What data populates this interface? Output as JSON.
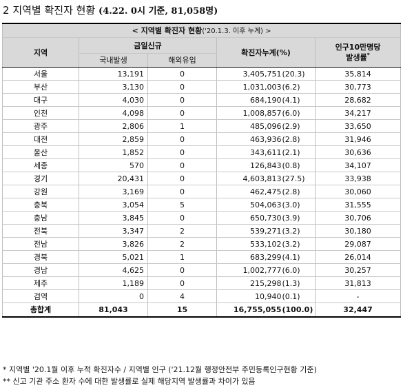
{
  "heading": {
    "number": "2",
    "text": "지역별 확진자 현황",
    "sub": "(4.22. 0시 기준, 81,058명)"
  },
  "table": {
    "title": "< 지역별 확진자 현황",
    "title_sub": "('20.1.3. 이후 누계) >",
    "col_region": "지역",
    "col_new": "금일신규",
    "col_domestic": "국내발생",
    "col_overseas": "해외유입",
    "col_cumulative": "확진자누계(%)",
    "col_rate": "인구10만명당 발생률",
    "col_rate_line1": "인구10만명당",
    "col_rate_line2": "발생률",
    "col_rate_mark": "*",
    "rows": [
      {
        "region": "서울",
        "domestic": "13,191",
        "overseas": "0",
        "cumulative": "3,405,751",
        "pct": "(20.3)",
        "rate": "35,814"
      },
      {
        "region": "부산",
        "domestic": "3,130",
        "overseas": "0",
        "cumulative": "1,031,003",
        "pct": "(6.2)",
        "rate": "30,773"
      },
      {
        "region": "대구",
        "domestic": "4,030",
        "overseas": "0",
        "cumulative": "684,190",
        "pct": "(4.1)",
        "rate": "28,682"
      },
      {
        "region": "인천",
        "domestic": "4,098",
        "overseas": "0",
        "cumulative": "1,008,857",
        "pct": "(6.0)",
        "rate": "34,217"
      },
      {
        "region": "광주",
        "domestic": "2,806",
        "overseas": "1",
        "cumulative": "485,096",
        "pct": "(2.9)",
        "rate": "33,650"
      },
      {
        "region": "대전",
        "domestic": "2,859",
        "overseas": "0",
        "cumulative": "463,936",
        "pct": "(2.8)",
        "rate": "31,946"
      },
      {
        "region": "울산",
        "domestic": "1,852",
        "overseas": "0",
        "cumulative": "343,611",
        "pct": "(2.1)",
        "rate": "30,636"
      },
      {
        "region": "세종",
        "domestic": "570",
        "overseas": "0",
        "cumulative": "126,843",
        "pct": "(0.8)",
        "rate": "34,107"
      },
      {
        "region": "경기",
        "domestic": "20,431",
        "overseas": "0",
        "cumulative": "4,603,813",
        "pct": "(27.5)",
        "rate": "33,938"
      },
      {
        "region": "강원",
        "domestic": "3,169",
        "overseas": "0",
        "cumulative": "462,475",
        "pct": "(2.8)",
        "rate": "30,060"
      },
      {
        "region": "충북",
        "domestic": "3,054",
        "overseas": "5",
        "cumulative": "504,063",
        "pct": "(3.0)",
        "rate": "31,555"
      },
      {
        "region": "충남",
        "domestic": "3,845",
        "overseas": "0",
        "cumulative": "650,730",
        "pct": "(3.9)",
        "rate": "30,706"
      },
      {
        "region": "전북",
        "domestic": "3,347",
        "overseas": "2",
        "cumulative": "539,271",
        "pct": "(3.2)",
        "rate": "30,180"
      },
      {
        "region": "전남",
        "domestic": "3,826",
        "overseas": "2",
        "cumulative": "533,102",
        "pct": "(3.2)",
        "rate": "29,087"
      },
      {
        "region": "경북",
        "domestic": "5,021",
        "overseas": "1",
        "cumulative": "683,299",
        "pct": "(4.1)",
        "rate": "26,014"
      },
      {
        "region": "경남",
        "domestic": "4,625",
        "overseas": "0",
        "cumulative": "1,002,777",
        "pct": "(6.0)",
        "rate": "30,257"
      },
      {
        "region": "제주",
        "domestic": "1,189",
        "overseas": "0",
        "cumulative": "215,298",
        "pct": "(1.3)",
        "rate": "31,813"
      },
      {
        "region": "검역",
        "domestic": "0",
        "overseas": "4",
        "cumulative": "10,940",
        "pct": "(0.1)",
        "rate": "-"
      }
    ],
    "total": {
      "region": "총합계",
      "domestic": "81,043",
      "overseas": "15",
      "cumulative": "16,755,055",
      "pct": "(100.0)",
      "rate": "32,447"
    }
  },
  "notes": [
    "* 지역별 '20.1월 이후 누적 확진자수 / 지역별 인구 ('21.12월 행정안전부 주민등록인구현황 기준)",
    "** 신고 기관 주소 환자 수에 대한 발생률로 실제 해당지역 발생률과 차이가 있음"
  ]
}
